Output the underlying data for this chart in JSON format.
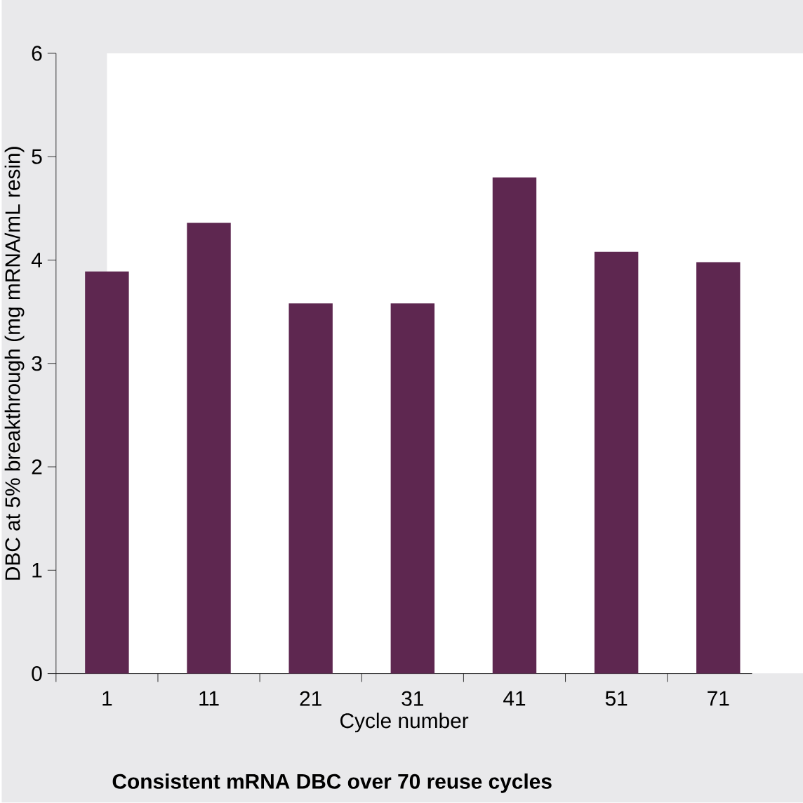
{
  "chart_data": {
    "type": "bar",
    "title": "Consistent mRNA DBC over 70 reuse cycles",
    "xlabel": "Cycle number",
    "ylabel": "DBC at 5% breakthrough (mg mRNA/mL resin)",
    "categories": [
      "1",
      "11",
      "21",
      "31",
      "41",
      "51",
      "71"
    ],
    "values": [
      3.89,
      4.36,
      3.58,
      3.58,
      4.8,
      4.08,
      3.98
    ],
    "color": "#5e2750",
    "ylim": [
      0,
      6
    ],
    "yticks": [
      0,
      1,
      2,
      3,
      4,
      5,
      6
    ]
  }
}
